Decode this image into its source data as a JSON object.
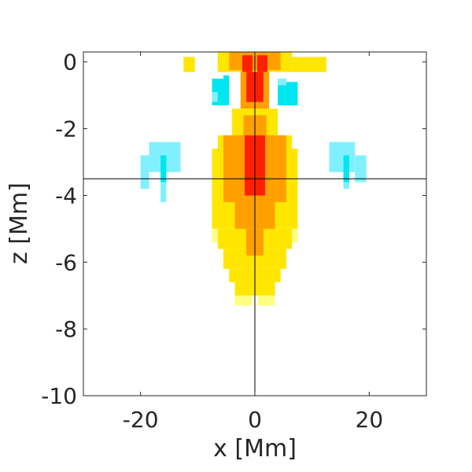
{
  "chart_data": {
    "type": "heatmap",
    "xlabel": "x [Mm]",
    "ylabel": "z [Mm]",
    "xlim": [
      -30,
      30
    ],
    "ylim": [
      -10,
      0.3
    ],
    "xticks": [
      -20,
      0,
      20
    ],
    "xtick_labels": [
      "-20",
      "0",
      "20"
    ],
    "yticks": [
      0,
      -2,
      -4,
      -6,
      -8,
      -10
    ],
    "ytick_labels": [
      "0",
      "-2",
      "-4",
      "-6",
      "-8",
      "-10"
    ],
    "crosshair": {
      "x": 0,
      "z": -3.5
    },
    "grid": false,
    "colors": {
      "light_yellow": "#ffff80",
      "yellow": "#ffe600",
      "orange": "#ffa000",
      "red": "#ff2000",
      "light_cyan": "#80f0ff",
      "cyan": "#00e6f0"
    },
    "regions": [
      {
        "x": [
          -12.5,
          -10.5
        ],
        "z": [
          0.15,
          -0.3
        ],
        "color": "yellow"
      },
      {
        "x": [
          -6.5,
          6.5
        ],
        "z": [
          0.3,
          -0.3
        ],
        "color": "yellow"
      },
      {
        "x": [
          -4.5,
          4.5
        ],
        "z": [
          0.3,
          -0.25
        ],
        "color": "orange"
      },
      {
        "x": [
          -2.2,
          -0.4
        ],
        "z": [
          0.2,
          -0.3
        ],
        "color": "red"
      },
      {
        "x": [
          0.4,
          2.2
        ],
        "z": [
          0.2,
          -0.3
        ],
        "color": "red"
      },
      {
        "x": [
          -2.5,
          2.5
        ],
        "z": [
          -0.3,
          -1.4
        ],
        "color": "orange"
      },
      {
        "x": [
          -1.5,
          1.5
        ],
        "z": [
          -0.3,
          -1.2
        ],
        "color": "red"
      },
      {
        "x": [
          6.5,
          12.5
        ],
        "z": [
          0.15,
          -0.3
        ],
        "color": "yellow"
      },
      {
        "x": [
          -4.0,
          4.0
        ],
        "z": [
          -1.4,
          -2.2
        ],
        "color": "yellow"
      },
      {
        "x": [
          -2.0,
          2.0
        ],
        "z": [
          -1.6,
          -2.2
        ],
        "color": "orange"
      },
      {
        "x": [
          -6.5,
          6.5
        ],
        "z": [
          -2.2,
          -2.6
        ],
        "color": "yellow"
      },
      {
        "x": [
          -7.5,
          7.5
        ],
        "z": [
          -2.6,
          -5.0
        ],
        "color": "yellow"
      },
      {
        "x": [
          -5.5,
          5.5
        ],
        "z": [
          -2.2,
          -4.2
        ],
        "color": "orange"
      },
      {
        "x": [
          -3.5,
          3.5
        ],
        "z": [
          -2.2,
          -5.0
        ],
        "color": "orange"
      },
      {
        "x": [
          -1.8,
          1.8
        ],
        "z": [
          -2.2,
          -4.0
        ],
        "color": "red"
      },
      {
        "x": [
          -0.8,
          0.8
        ],
        "z": [
          -2.4,
          -3.6
        ],
        "color": "red"
      },
      {
        "x": [
          -6.5,
          6.5
        ],
        "z": [
          -5.0,
          -5.6
        ],
        "color": "yellow"
      },
      {
        "x": [
          -7.5,
          -6.5
        ],
        "z": [
          -5.0,
          -5.4
        ],
        "color": "light_yellow"
      },
      {
        "x": [
          6.5,
          7.5
        ],
        "z": [
          -5.0,
          -5.4
        ],
        "color": "light_yellow"
      },
      {
        "x": [
          -5.5,
          5.5
        ],
        "z": [
          -5.6,
          -6.2
        ],
        "color": "yellow"
      },
      {
        "x": [
          -4.5,
          4.5
        ],
        "z": [
          -6.2,
          -6.6
        ],
        "color": "yellow"
      },
      {
        "x": [
          -3.5,
          3.5
        ],
        "z": [
          -6.6,
          -7.0
        ],
        "color": "yellow"
      },
      {
        "x": [
          -3.5,
          -0.5
        ],
        "z": [
          -7.0,
          -7.3
        ],
        "color": "light_yellow"
      },
      {
        "x": [
          0.5,
          3.5
        ],
        "z": [
          -7.0,
          -7.3
        ],
        "color": "light_yellow"
      },
      {
        "x": [
          -1.5,
          1.5
        ],
        "z": [
          -5.0,
          -5.8
        ],
        "color": "orange"
      },
      {
        "x": [
          -7.5,
          -4.5
        ],
        "z": [
          -0.5,
          -1.3
        ],
        "color": "cyan"
      },
      {
        "x": [
          -5.5,
          -4.5
        ],
        "z": [
          -0.4,
          -0.6
        ],
        "color": "cyan"
      },
      {
        "x": [
          -7.5,
          -6.5
        ],
        "z": [
          -0.9,
          -1.2
        ],
        "color": "light_cyan"
      },
      {
        "x": [
          4.0,
          7.5
        ],
        "z": [
          -0.6,
          -1.3
        ],
        "color": "cyan"
      },
      {
        "x": [
          4.0,
          5.5
        ],
        "z": [
          -0.5,
          -0.7
        ],
        "color": "light_cyan"
      },
      {
        "x": [
          -18.5,
          -13.0
        ],
        "z": [
          -2.4,
          -3.3
        ],
        "color": "light_cyan"
      },
      {
        "x": [
          -20.0,
          -18.5
        ],
        "z": [
          -2.8,
          -3.8
        ],
        "color": "light_cyan"
      },
      {
        "x": [
          -16.5,
          -15.5
        ],
        "z": [
          -3.3,
          -4.2
        ],
        "color": "light_cyan"
      },
      {
        "x": [
          -16.5,
          -15.5
        ],
        "z": [
          -2.8,
          -3.6
        ],
        "color": "cyan"
      },
      {
        "x": [
          13.0,
          17.5
        ],
        "z": [
          -2.4,
          -3.3
        ],
        "color": "light_cyan"
      },
      {
        "x": [
          17.5,
          19.5
        ],
        "z": [
          -2.8,
          -3.6
        ],
        "color": "light_cyan"
      },
      {
        "x": [
          15.5,
          16.5
        ],
        "z": [
          -3.3,
          -3.8
        ],
        "color": "light_cyan"
      },
      {
        "x": [
          15.5,
          16.5
        ],
        "z": [
          -2.8,
          -3.6
        ],
        "color": "cyan"
      }
    ]
  }
}
